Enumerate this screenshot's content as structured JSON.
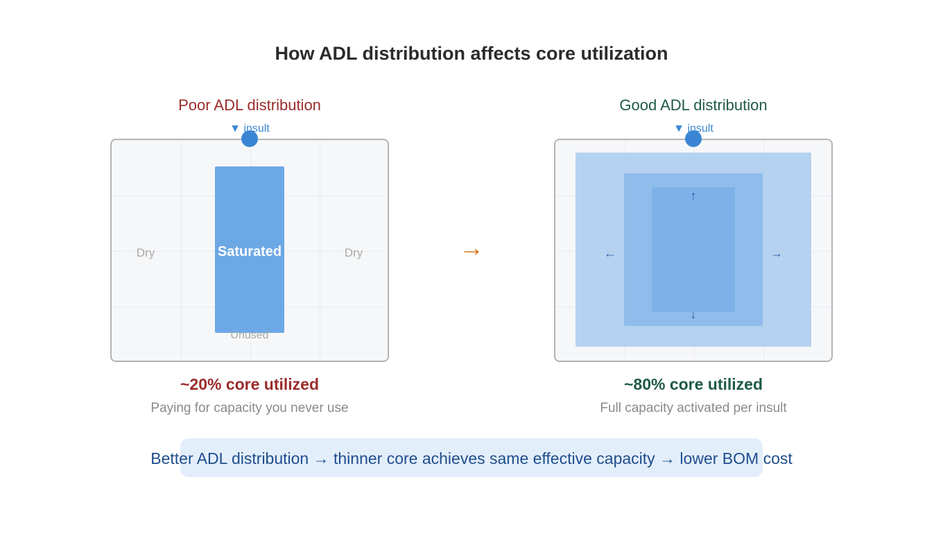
{
  "title": "How ADL distribution affects core utilization",
  "poor": {
    "heading": "Poor ADL distribution",
    "insult_label": "▼ insult",
    "saturated_label": "Saturated",
    "dry_left": "Dry",
    "dry_right": "Dry",
    "unused_label": "Unused",
    "utilization": "~20% core utilized",
    "caption": "Paying for capacity you never use"
  },
  "transition_arrow": "→",
  "good": {
    "heading": "Good ADL distribution",
    "insult_label": "▼ insult",
    "arrows": {
      "up": "↑",
      "down": "↓",
      "left": "←",
      "right": "→"
    },
    "utilization": "~80% core utilized",
    "caption": "Full capacity activated per insult"
  },
  "callout": "Better ADL distribution → thinner core achieves same effective capacity → lower BOM cost",
  "colors": {
    "poor": "#9b2c2c",
    "good": "#1e5b43",
    "fluid": "#6da8e6",
    "insult": "#3a86d4",
    "arrow": "#d17a1e"
  }
}
